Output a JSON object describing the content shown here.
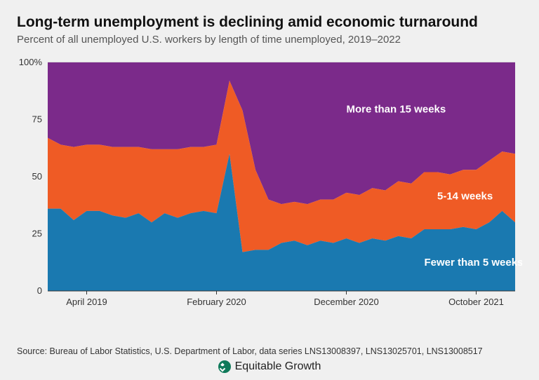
{
  "title": "Long-term unemployment is declining amid economic turnaround",
  "subtitle": "Percent of all unemployed U.S. workers by length of time unemployed, 2019–2022",
  "source": "Source: Bureau of Labor Statistics, U.S. Department of Labor, data series LNS13008397, LNS13025701, LNS13008517",
  "brand": "Equitable Growth",
  "chart": {
    "type": "stacked-area",
    "background_color": "#f0f0f0",
    "plot_background": "#f0f0f0",
    "grid_color": "#c8c8c8",
    "axis_color": "#333333",
    "label_color": "#333333",
    "label_fontsize": 13,
    "series_label_fontsize": 15,
    "series_label_weight": 700,
    "series_label_color": "#ffffff",
    "ylim": [
      0,
      100
    ],
    "yticks": [
      0,
      25,
      50,
      75,
      100
    ],
    "ytick_labels": [
      "0",
      "25",
      "50",
      "75",
      "100%"
    ],
    "n_points": 37,
    "xtick_positions": [
      3,
      13,
      23,
      33
    ],
    "xtick_labels": [
      "April 2019",
      "February 2020",
      "December 2020",
      "October 2021"
    ],
    "series": [
      {
        "name": "Fewer than 5 weeks",
        "color": "#1a79b0",
        "label_anchor": [
          29,
          11
        ],
        "values": [
          36,
          36,
          31,
          35,
          35,
          33,
          32,
          34,
          30,
          34,
          32,
          34,
          35,
          34,
          60,
          17,
          18,
          18,
          21,
          22,
          20,
          22,
          21,
          23,
          21,
          23,
          22,
          24,
          23,
          27,
          27,
          27,
          28,
          27,
          30,
          35,
          30
        ]
      },
      {
        "name": "5-14 weeks",
        "color": "#ef5b25",
        "label_anchor": [
          30,
          40
        ],
        "values": [
          31,
          28,
          32,
          29,
          29,
          30,
          31,
          29,
          32,
          28,
          30,
          29,
          28,
          30,
          32,
          62,
          35,
          22,
          17,
          17,
          18,
          18,
          19,
          20,
          21,
          22,
          22,
          24,
          24,
          25,
          25,
          24,
          25,
          26,
          27,
          26,
          30
        ]
      },
      {
        "name": "More than 15 weeks",
        "color": "#7b2a8a",
        "label_anchor": [
          23,
          78
        ],
        "values": [
          33,
          36,
          37,
          36,
          36,
          37,
          37,
          37,
          38,
          38,
          38,
          37,
          37,
          36,
          8,
          21,
          47,
          60,
          62,
          61,
          62,
          60,
          60,
          57,
          58,
          55,
          56,
          52,
          53,
          48,
          48,
          49,
          47,
          47,
          43,
          39,
          40
        ]
      }
    ]
  }
}
